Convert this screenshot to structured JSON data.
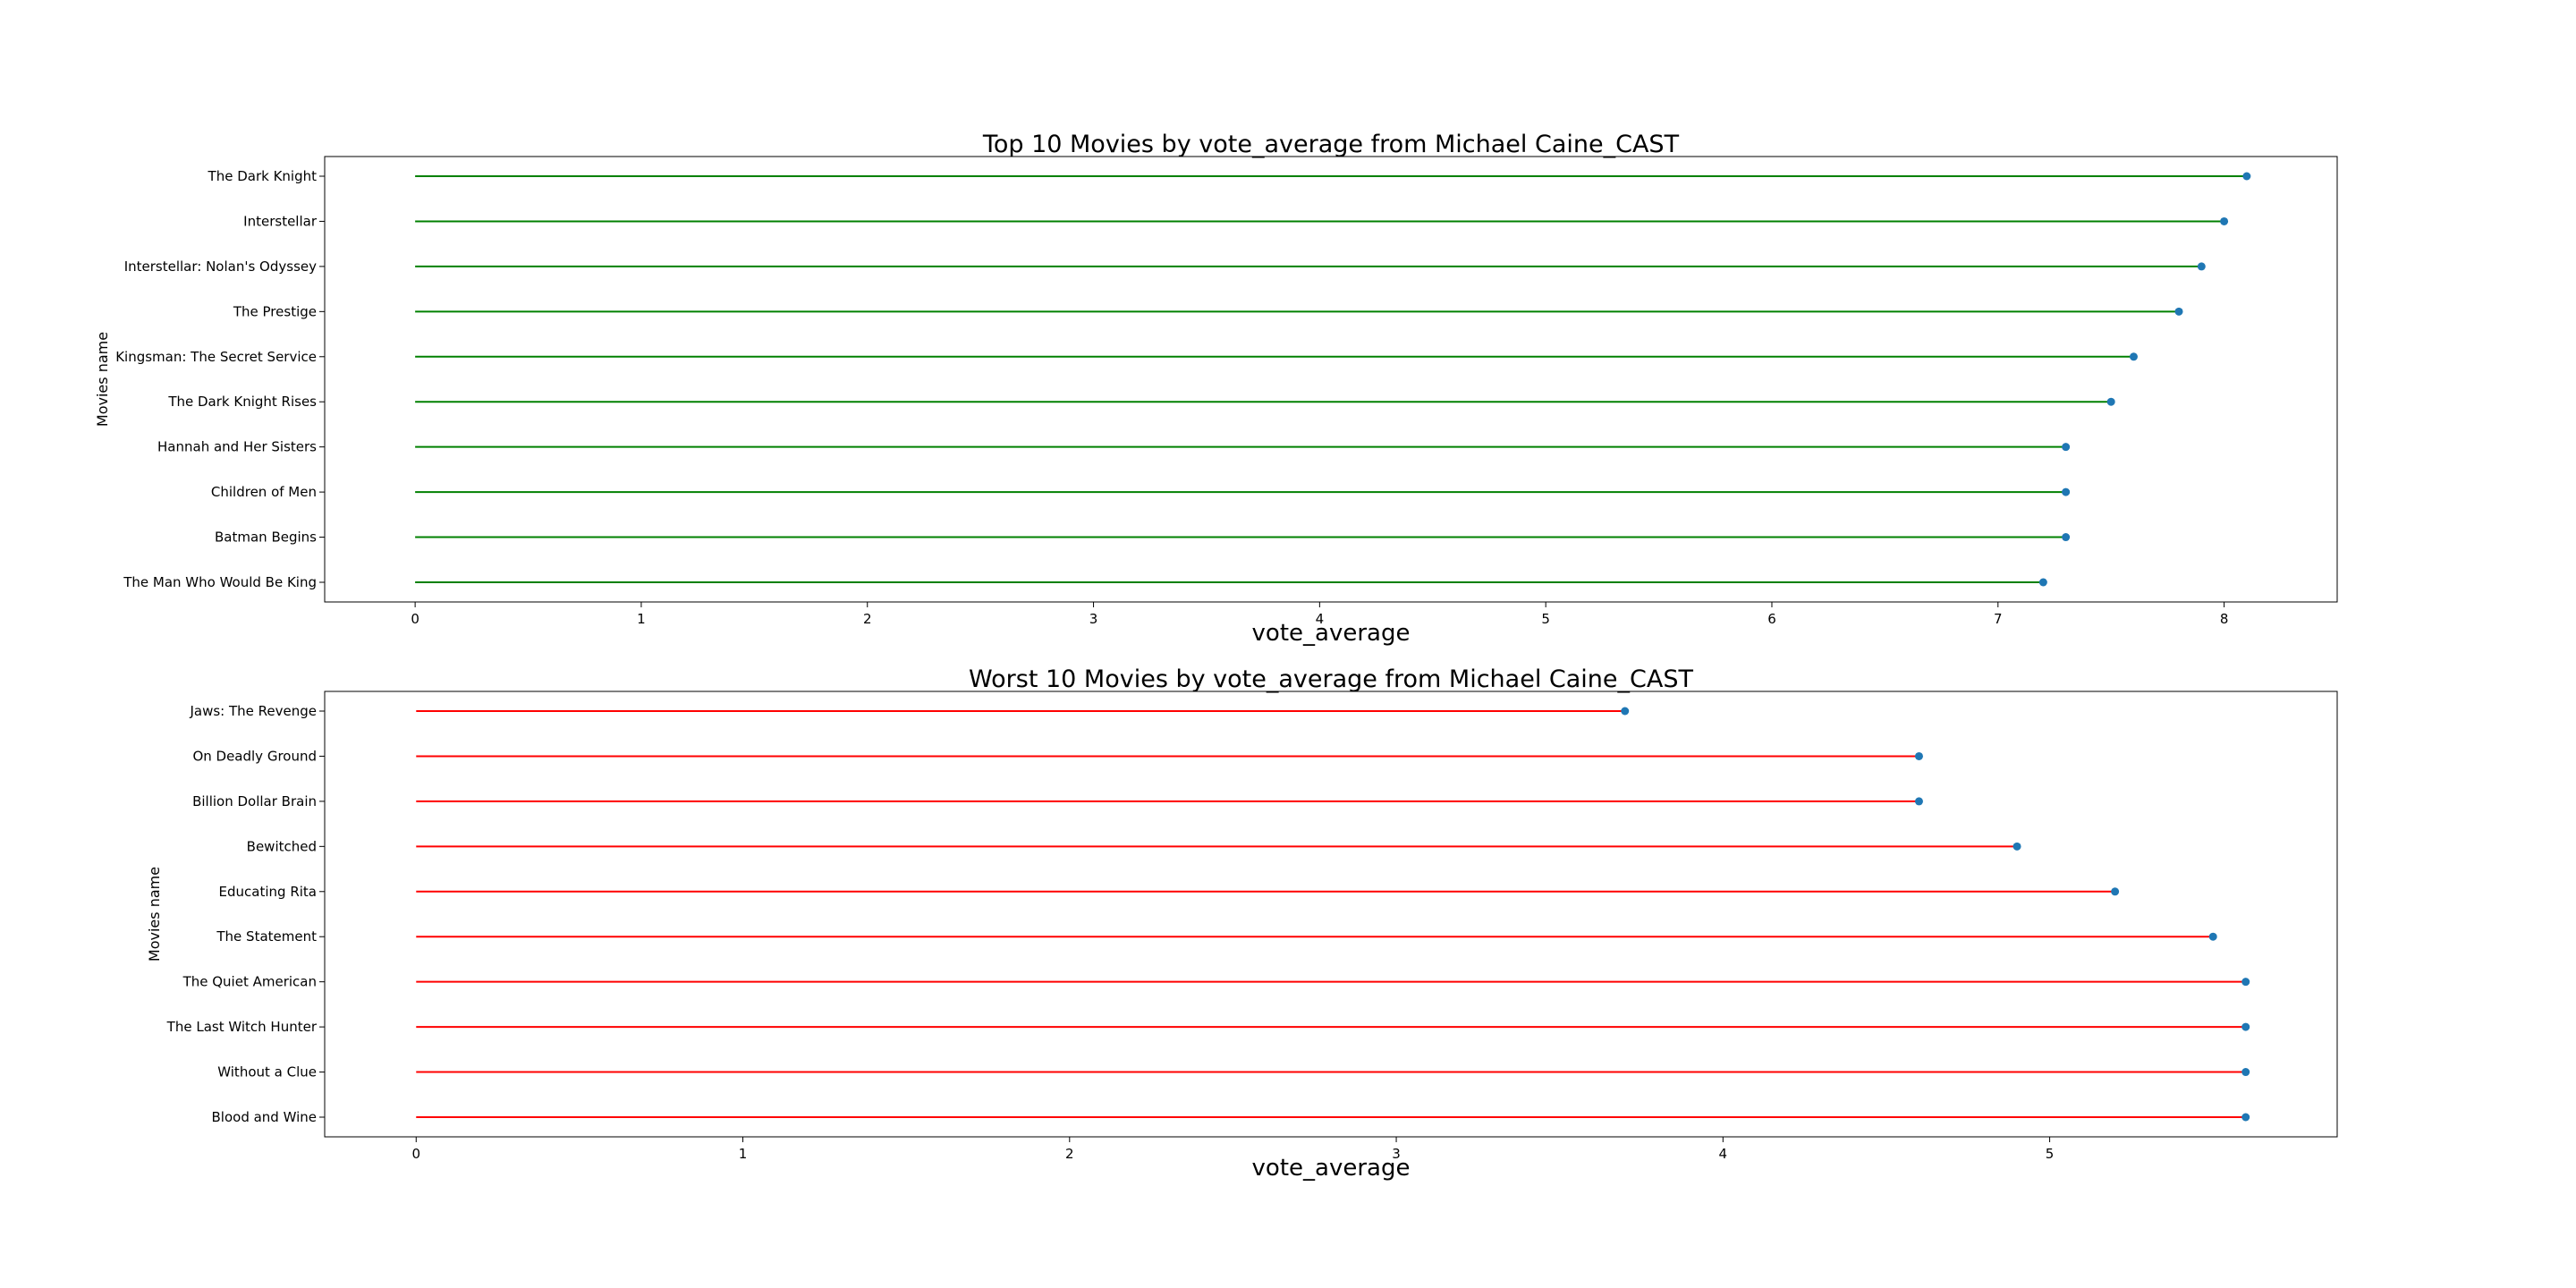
{
  "chart_data": [
    {
      "type": "lollipop",
      "orientation": "horizontal",
      "title": "Top 10 Movies by vote_average from Michael Caine_CAST",
      "xlabel": "vote_average",
      "ylabel": "Movies name",
      "xlim": [
        -0.4,
        8.5
      ],
      "xticks": [
        0,
        1,
        2,
        3,
        4,
        5,
        6,
        7,
        8
      ],
      "grid": false,
      "stem_color": "#008000",
      "marker_color": "#1f77b4",
      "categories": [
        "The Dark Knight",
        "Interstellar",
        "Interstellar: Nolan's Odyssey",
        "The Prestige",
        "Kingsman: The Secret Service",
        "The Dark Knight Rises",
        "Hannah and Her Sisters",
        "Children of Men",
        "Batman Begins",
        "The Man Who Would Be King"
      ],
      "values": [
        8.1,
        8.0,
        7.9,
        7.8,
        7.6,
        7.5,
        7.3,
        7.3,
        7.3,
        7.2
      ]
    },
    {
      "type": "lollipop",
      "orientation": "horizontal",
      "title": "Worst 10 Movies by vote_average from Michael Caine_CAST",
      "xlabel": "vote_average",
      "ylabel": "Movies name",
      "xlim": [
        -0.28,
        5.88
      ],
      "xticks": [
        0,
        1,
        2,
        3,
        4,
        5
      ],
      "grid": false,
      "stem_color": "#ff0000",
      "marker_color": "#1f77b4",
      "categories": [
        "Jaws: The Revenge",
        "On Deadly Ground",
        "Billion Dollar Brain",
        "Bewitched",
        "Educating Rita",
        "The Statement",
        "The Quiet American",
        "The Last Witch Hunter",
        "Without a Clue",
        "Blood and Wine"
      ],
      "values": [
        3.7,
        4.6,
        4.6,
        4.9,
        5.2,
        5.5,
        5.6,
        5.6,
        5.6,
        5.6
      ]
    }
  ]
}
